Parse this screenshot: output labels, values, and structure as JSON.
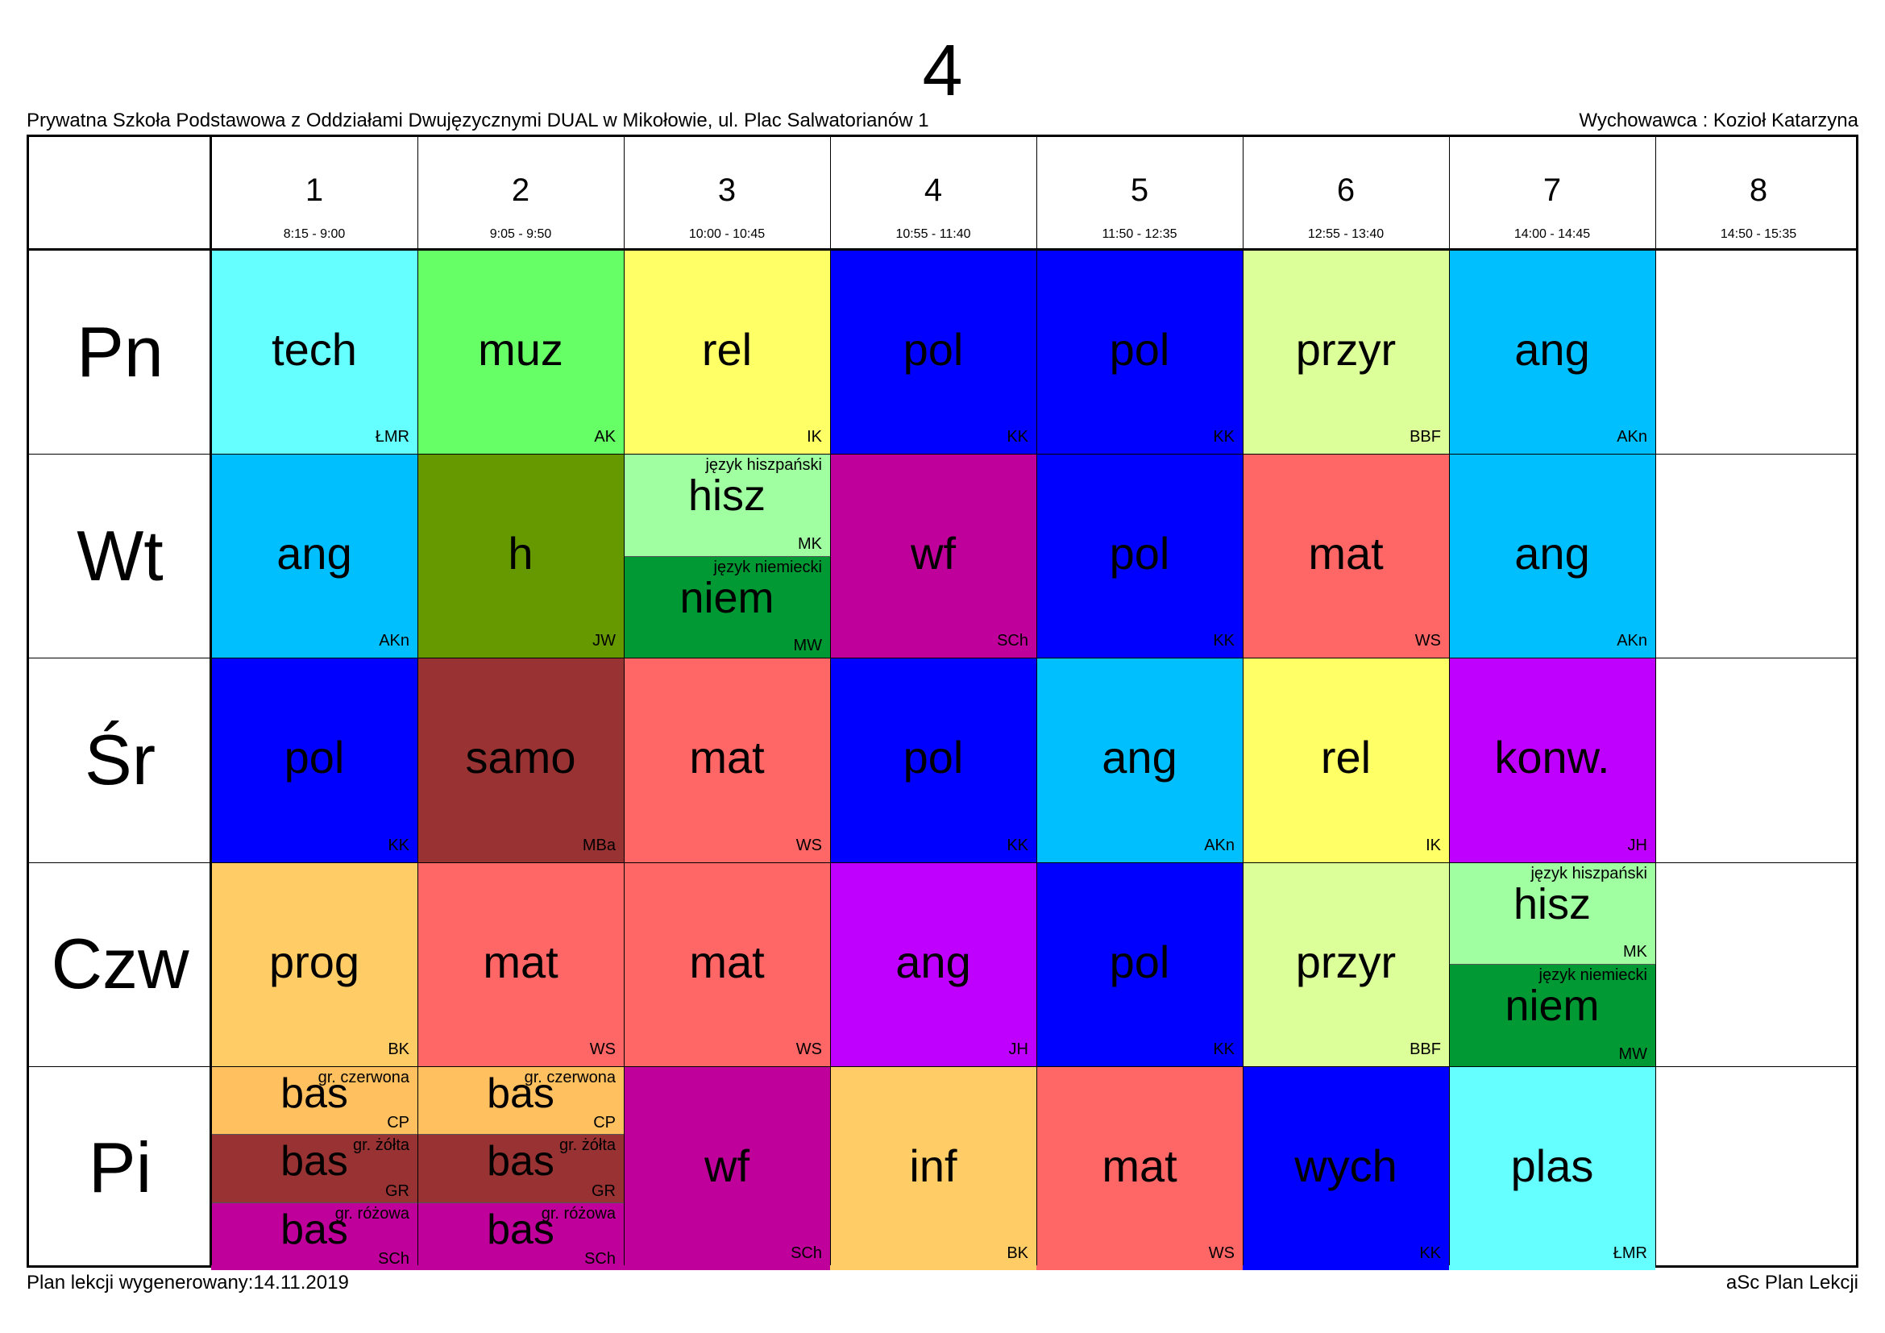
{
  "title": "4",
  "school": "Prywatna Szkoła Podstawowa z Oddziałami Dwujęzycznymi DUAL w Mikołowie, ul. Plac Salwatorianów 1",
  "teacher": "Wychowawca : Kozioł Katarzyna",
  "footer_left": "Plan lekcji wygenerowany:14.11.2019",
  "footer_right": "aSc Plan Lekcji",
  "periods": [
    {
      "num": "1",
      "time": "8:15 - 9:00"
    },
    {
      "num": "2",
      "time": "9:05 - 9:50"
    },
    {
      "num": "3",
      "time": "10:00 - 10:45"
    },
    {
      "num": "4",
      "time": "10:55 - 11:40"
    },
    {
      "num": "5",
      "time": "11:50 - 12:35"
    },
    {
      "num": "6",
      "time": "12:55 - 13:40"
    },
    {
      "num": "7",
      "time": "14:00 - 14:45"
    },
    {
      "num": "8",
      "time": "14:50 - 15:35"
    }
  ],
  "days": [
    {
      "name": "Pn",
      "lessons": [
        {
          "period": 1,
          "parts": [
            {
              "subject": "tech",
              "teacher": "ŁMR",
              "color": "#66FFFF"
            }
          ]
        },
        {
          "period": 2,
          "parts": [
            {
              "subject": "muz",
              "teacher": "AK",
              "color": "#66FF66"
            }
          ]
        },
        {
          "period": 3,
          "parts": [
            {
              "subject": "rel",
              "teacher": "IK",
              "color": "#FFFF66"
            }
          ]
        },
        {
          "period": 4,
          "parts": [
            {
              "subject": "pol",
              "teacher": "KK",
              "color": "#0000FF"
            }
          ]
        },
        {
          "period": 5,
          "parts": [
            {
              "subject": "pol",
              "teacher": "KK",
              "color": "#0000FF"
            }
          ]
        },
        {
          "period": 6,
          "parts": [
            {
              "subject": "przyr",
              "teacher": "BBF",
              "color": "#DDFF99"
            }
          ]
        },
        {
          "period": 7,
          "parts": [
            {
              "subject": "ang",
              "teacher": "AKn",
              "color": "#00BFFF"
            }
          ]
        }
      ]
    },
    {
      "name": "Wt",
      "lessons": [
        {
          "period": 1,
          "parts": [
            {
              "subject": "ang",
              "teacher": "AKn",
              "color": "#00BFFF"
            }
          ]
        },
        {
          "period": 2,
          "parts": [
            {
              "subject": "h",
              "teacher": "JW",
              "color": "#669900"
            }
          ]
        },
        {
          "period": 3,
          "parts": [
            {
              "group": "język hiszpański",
              "subject": "hisz",
              "teacher": "MK",
              "color": "#A0FFA0"
            },
            {
              "group": "język niemiecki",
              "subject": "niem",
              "teacher": "MW",
              "color": "#009933"
            }
          ]
        },
        {
          "period": 4,
          "parts": [
            {
              "subject": "wf",
              "teacher": "SCh",
              "color": "#C0009A"
            }
          ]
        },
        {
          "period": 5,
          "parts": [
            {
              "subject": "pol",
              "teacher": "KK",
              "color": "#0000FF"
            }
          ]
        },
        {
          "period": 6,
          "parts": [
            {
              "subject": "mat",
              "teacher": "WS",
              "color": "#FF6666"
            }
          ]
        },
        {
          "period": 7,
          "parts": [
            {
              "subject": "ang",
              "teacher": "AKn",
              "color": "#00BFFF"
            }
          ]
        }
      ]
    },
    {
      "name": "Śr",
      "lessons": [
        {
          "period": 1,
          "parts": [
            {
              "subject": "pol",
              "teacher": "KK",
              "color": "#0000FF"
            }
          ]
        },
        {
          "period": 2,
          "parts": [
            {
              "subject": "samo",
              "teacher": "MBa",
              "color": "#993333"
            }
          ]
        },
        {
          "period": 3,
          "parts": [
            {
              "subject": "mat",
              "teacher": "WS",
              "color": "#FF6666"
            }
          ]
        },
        {
          "period": 4,
          "parts": [
            {
              "subject": "pol",
              "teacher": "KK",
              "color": "#0000FF"
            }
          ]
        },
        {
          "period": 5,
          "parts": [
            {
              "subject": "ang",
              "teacher": "AKn",
              "color": "#00BFFF"
            }
          ]
        },
        {
          "period": 6,
          "parts": [
            {
              "subject": "rel",
              "teacher": "IK",
              "color": "#FFFF66"
            }
          ]
        },
        {
          "period": 7,
          "parts": [
            {
              "subject": "konw.",
              "teacher": "JH",
              "color": "#BF00FF"
            }
          ]
        }
      ]
    },
    {
      "name": "Czw",
      "lessons": [
        {
          "period": 1,
          "parts": [
            {
              "subject": "prog",
              "teacher": "BK",
              "color": "#FFCC66"
            }
          ]
        },
        {
          "period": 2,
          "parts": [
            {
              "subject": "mat",
              "teacher": "WS",
              "color": "#FF6666"
            }
          ]
        },
        {
          "period": 3,
          "parts": [
            {
              "subject": "mat",
              "teacher": "WS",
              "color": "#FF6666"
            }
          ]
        },
        {
          "period": 4,
          "parts": [
            {
              "subject": "ang",
              "teacher": "JH",
              "color": "#BF00FF"
            }
          ]
        },
        {
          "period": 5,
          "parts": [
            {
              "subject": "pol",
              "teacher": "KK",
              "color": "#0000FF"
            }
          ]
        },
        {
          "period": 6,
          "parts": [
            {
              "subject": "przyr",
              "teacher": "BBF",
              "color": "#DDFF99"
            }
          ]
        },
        {
          "period": 7,
          "parts": [
            {
              "group": "język hiszpański",
              "subject": "hisz",
              "teacher": "MK",
              "color": "#A0FFA0"
            },
            {
              "group": "język niemiecki",
              "subject": "niem",
              "teacher": "MW",
              "color": "#009933"
            }
          ]
        }
      ]
    },
    {
      "name": "Pi",
      "lessons": [
        {
          "period": 1,
          "parts": [
            {
              "group": "gr. czerwona",
              "subject": "bas",
              "teacher": "CP",
              "color": "#FFC060"
            },
            {
              "group": "gr. żółta",
              "subject": "bas",
              "teacher": "GR",
              "color": "#993333"
            },
            {
              "group": "gr. różowa",
              "subject": "bas",
              "teacher": "SCh",
              "color": "#C0009A"
            }
          ]
        },
        {
          "period": 2,
          "parts": [
            {
              "group": "gr. czerwona",
              "subject": "bas",
              "teacher": "CP",
              "color": "#FFC060"
            },
            {
              "group": "gr. żółta",
              "subject": "bas",
              "teacher": "GR",
              "color": "#993333"
            },
            {
              "group": "gr. różowa",
              "subject": "bas",
              "teacher": "SCh",
              "color": "#C0009A"
            }
          ]
        },
        {
          "period": 3,
          "parts": [
            {
              "subject": "wf",
              "teacher": "SCh",
              "color": "#C0009A"
            }
          ]
        },
        {
          "period": 4,
          "parts": [
            {
              "subject": "inf",
              "teacher": "BK",
              "color": "#FFCC66"
            }
          ]
        },
        {
          "period": 5,
          "parts": [
            {
              "subject": "mat",
              "teacher": "WS",
              "color": "#FF6666"
            }
          ]
        },
        {
          "period": 6,
          "parts": [
            {
              "subject": "wych",
              "teacher": "KK",
              "color": "#0000FF"
            }
          ]
        },
        {
          "period": 7,
          "parts": [
            {
              "subject": "plas",
              "teacher": "ŁMR",
              "color": "#66FFFF"
            }
          ]
        }
      ]
    }
  ]
}
